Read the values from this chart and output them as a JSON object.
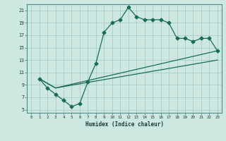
{
  "xlabel": "Humidex (Indice chaleur)",
  "xlim": [
    -0.5,
    23.5
  ],
  "ylim": [
    4.5,
    22
  ],
  "xticks": [
    0,
    1,
    2,
    3,
    4,
    5,
    6,
    7,
    8,
    9,
    10,
    11,
    12,
    13,
    14,
    15,
    16,
    17,
    18,
    19,
    20,
    21,
    22,
    23
  ],
  "yticks": [
    5,
    7,
    9,
    11,
    13,
    15,
    17,
    19,
    21
  ],
  "bg_color": "#cce8e0",
  "grid_color": "#aacccc",
  "line_color": "#1a6b5a",
  "line1_x": [
    1,
    2,
    3,
    4,
    5,
    6,
    7,
    8,
    9,
    10,
    11,
    12,
    13,
    14,
    15,
    16,
    17,
    18,
    19,
    20,
    21,
    22,
    23
  ],
  "line1_y": [
    10,
    8.5,
    7.5,
    6.5,
    5.5,
    6.0,
    9.5,
    12.5,
    17.5,
    19.0,
    19.5,
    21.5,
    20.0,
    19.5,
    19.5,
    19.5,
    19.0,
    16.5,
    16.5,
    16.0,
    16.5,
    16.5,
    14.5
  ],
  "line2_x": [
    1,
    3,
    23
  ],
  "line2_y": [
    10,
    8.5,
    14.5
  ],
  "line3_x": [
    1,
    3,
    23
  ],
  "line3_y": [
    10,
    8.5,
    13.0
  ]
}
